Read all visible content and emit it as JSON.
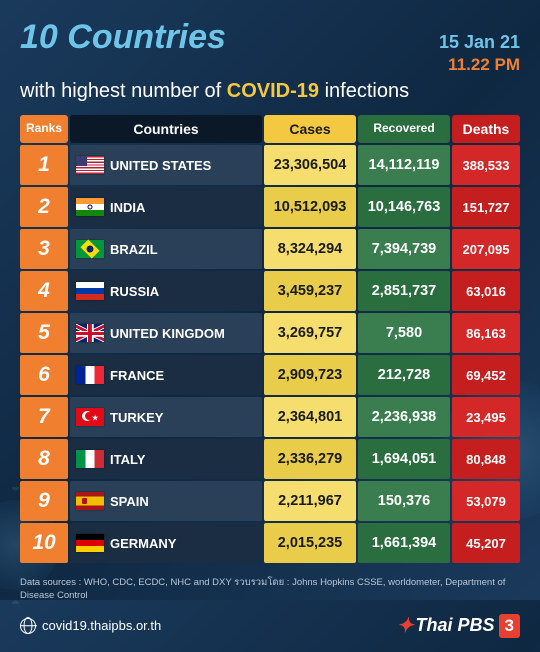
{
  "header": {
    "title": "10 Countries",
    "subtitle_prefix": "with highest number of ",
    "subtitle_covid": "COVID-19",
    "subtitle_suffix": " infections",
    "date": "15 Jan 21",
    "time": "11.22 PM"
  },
  "columns": {
    "rank": "Ranks",
    "country": "Countries",
    "cases": "Cases",
    "recovered": "Recovered",
    "deaths": "Deaths"
  },
  "colors": {
    "title": "#6ec5e8",
    "date": "#6ec5e8",
    "time": "#f08030",
    "subtitle_text": "#ffffff",
    "covid_highlight": "#f5c842",
    "rank_bg": "#f08030",
    "country_header_bg": "#0a1828",
    "cases_header_bg": "#f5c842",
    "recovered_header_bg": "#2a6e3f",
    "deaths_header_bg": "#c41e1e",
    "body_bg_gradient_start": "#1a3a5c",
    "body_bg_gradient_end": "#0f2842"
  },
  "typography": {
    "title_fontsize": 34,
    "subtitle_fontsize": 20,
    "date_fontsize": 18,
    "header_fontsize": 14,
    "cell_fontsize": 14.5,
    "rank_fontsize": 21,
    "footer_fontsize": 9.5
  },
  "rows": [
    {
      "rank": "1",
      "country": "UNITED STATES",
      "flag": "us",
      "cases": "23,306,504",
      "recovered": "14,112,119",
      "deaths": "388,533"
    },
    {
      "rank": "2",
      "country": "INDIA",
      "flag": "in",
      "cases": "10,512,093",
      "recovered": "10,146,763",
      "deaths": "151,727"
    },
    {
      "rank": "3",
      "country": "BRAZIL",
      "flag": "br",
      "cases": "8,324,294",
      "recovered": "7,394,739",
      "deaths": "207,095"
    },
    {
      "rank": "4",
      "country": "RUSSIA",
      "flag": "ru",
      "cases": "3,459,237",
      "recovered": "2,851,737",
      "deaths": "63,016"
    },
    {
      "rank": "5",
      "country": "UNITED KINGDOM",
      "flag": "uk",
      "cases": "3,269,757",
      "recovered": "7,580",
      "deaths": "86,163"
    },
    {
      "rank": "6",
      "country": "FRANCE",
      "flag": "fr",
      "cases": "2,909,723",
      "recovered": "212,728",
      "deaths": "69,452"
    },
    {
      "rank": "7",
      "country": "TURKEY",
      "flag": "tr",
      "cases": "2,364,801",
      "recovered": "2,236,938",
      "deaths": "23,495"
    },
    {
      "rank": "8",
      "country": "ITALY",
      "flag": "it",
      "cases": "2,336,279",
      "recovered": "1,694,051",
      "deaths": "80,848"
    },
    {
      "rank": "9",
      "country": "SPAIN",
      "flag": "es",
      "cases": "2,211,967",
      "recovered": "150,376",
      "deaths": "53,079"
    },
    {
      "rank": "10",
      "country": "GERMANY",
      "flag": "de",
      "cases": "2,015,235",
      "recovered": "1,661,394",
      "deaths": "45,207"
    }
  ],
  "flags": {
    "us": "linear-gradient(#b22234 0 7.7%,#fff 0 15.4%,#b22234 0 23%,#fff 0 30.8%,#b22234 0 38.5%,#fff 0 46.1%,#b22234 0 53.8%,#fff 0 61.5%,#b22234 0 69.2%,#fff 0 76.9%,#b22234 0 84.6%,#fff 0 92.3%,#b22234 0)",
    "us_canton": true,
    "in": "linear-gradient(#ff9933 0 33.3%,#fff 0 66.6%,#138808 0)",
    "br": "#009739",
    "ru": "linear-gradient(#fff 0 33.3%,#0039a6 0 66.6%,#d52b1e 0)",
    "uk": "#012169",
    "fr": "linear-gradient(90deg,#002395 0 33.3%,#fff 0 66.6%,#ed2939 0)",
    "tr": "#e30a17",
    "it": "linear-gradient(90deg,#009246 0 33.3%,#fff 0 66.6%,#ce2b37 0)",
    "es": "linear-gradient(#aa151b 0 25%,#f1bf00 0 75%,#aa151b 0)",
    "de": "linear-gradient(#000 0 33.3%,#dd0000 0 66.6%,#ffce00 0)"
  },
  "footer": {
    "sources": "Data sources : WHO, CDC, ECDC, NHC and DXY    รวบรวมโดย : Johns Hopkins CSSE, worldometer, Department of Disease Control",
    "url": "covid19.thaipbs.or.th",
    "logo_text": "Thai PBS",
    "logo_badge": "3"
  }
}
